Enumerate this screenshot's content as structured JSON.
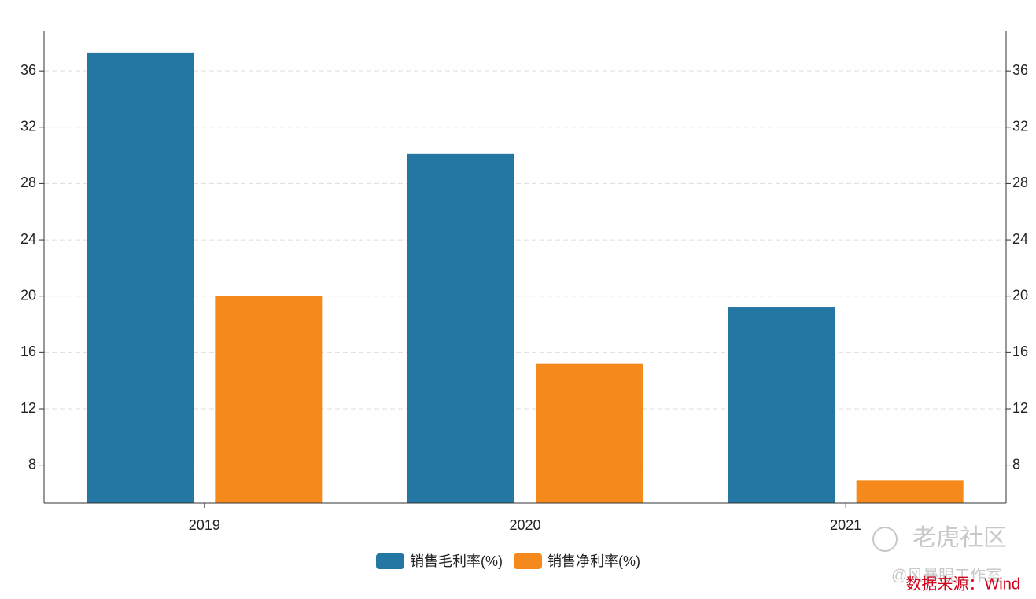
{
  "chart_data": {
    "type": "bar",
    "categories": [
      "2019",
      "2020",
      "2021"
    ],
    "series": [
      {
        "name": "销售毛利率(%)",
        "color": "#2577a3",
        "values": [
          37.3,
          30.1,
          19.2
        ]
      },
      {
        "name": "销售净利率(%)",
        "color": "#f5891c",
        "values": [
          20,
          15.2,
          6.9
        ]
      }
    ],
    "ylim": [
      5.3,
      38.8
    ],
    "yticks": [
      8,
      12,
      16,
      20,
      24,
      28,
      32,
      36
    ],
    "y2lim": [
      5.3,
      38.8
    ],
    "y2ticks": [
      8,
      12,
      16,
      20,
      24,
      28,
      32,
      36
    ],
    "grid": true,
    "legend": "bottom",
    "source": "数据来源：Wind",
    "watermarks": [
      "老虎社区",
      "@风暴眼工作室"
    ]
  }
}
